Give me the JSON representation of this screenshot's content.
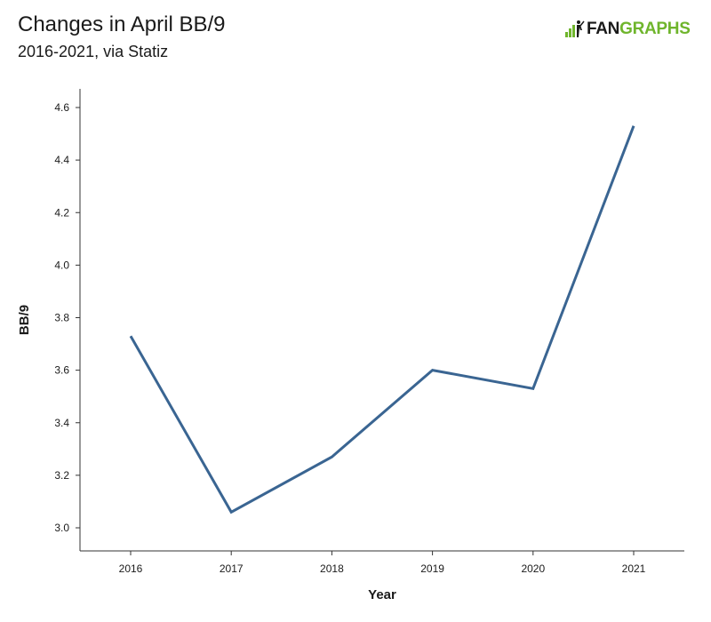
{
  "header": {
    "title": "Changes in April BB/9",
    "subtitle": "2016-2021, via Statiz"
  },
  "logo": {
    "fan_text": "FAN",
    "graphs_text": "GRAPHS",
    "icon": "fangraphs-logo-icon",
    "colors": {
      "fan": "#1a1a1a",
      "graphs": "#6fb52c"
    }
  },
  "chart_data": {
    "type": "line",
    "title": "Changes in April BB/9",
    "subtitle": "2016-2021, via Statiz",
    "xlabel": "Year",
    "ylabel": "BB/9",
    "x": [
      "2016",
      "2017",
      "2018",
      "2019",
      "2020",
      "2021"
    ],
    "series": [
      {
        "values": [
          3.73,
          3.06,
          3.27,
          3.6,
          3.53,
          4.53
        ],
        "color": "#3a6592"
      }
    ],
    "ylim": [
      2.93,
      4.67
    ],
    "yticks": [
      "3.0",
      "3.2",
      "3.4",
      "3.6",
      "3.8",
      "4.0",
      "4.2",
      "4.4",
      "4.6"
    ],
    "grid": false,
    "legend": "none"
  }
}
